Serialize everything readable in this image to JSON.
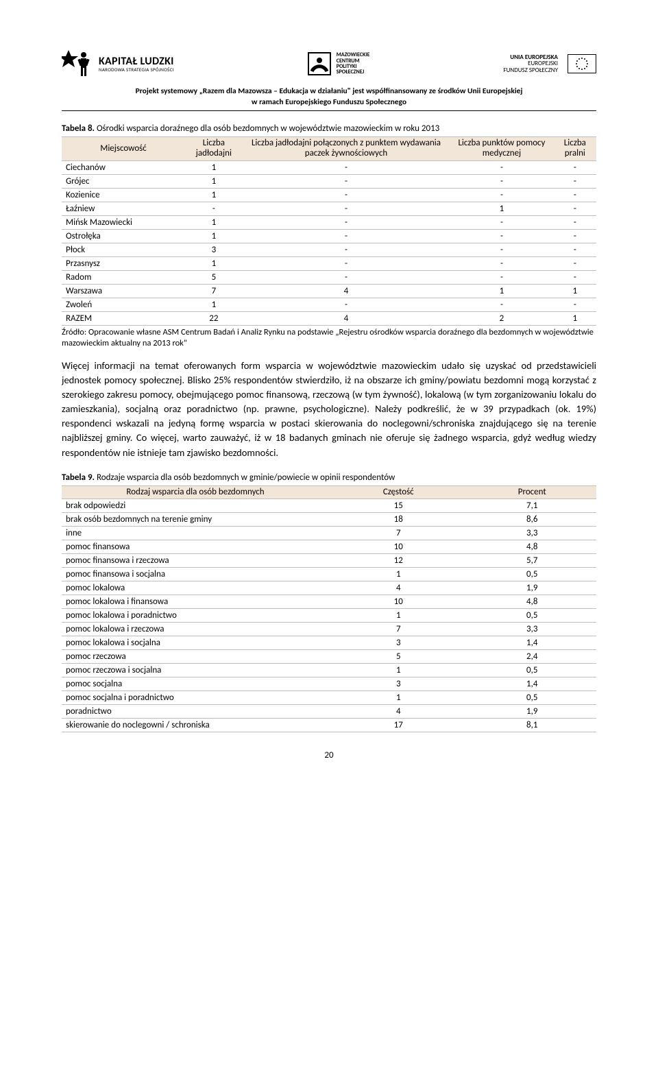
{
  "header": {
    "kl_big": "KAPITAŁ LUDZKI",
    "kl_small": "NARODOWA STRATEGIA SPÓJNOŚCI",
    "mc_l1": "MAZOWIECKIE",
    "mc_l2": "CENTRUM",
    "mc_l3": "POLITYKI",
    "mc_l4": "SPOŁECZNEJ",
    "ue_top": "UNIA EUROPEJSKA",
    "ue_bot": "EUROPEJSKI",
    "ue_bot2": "FUNDUSZ SPOŁECZNY",
    "project_line_a": "Projekt systemowy „Razem dla Mazowsza – Edukacja w działaniu\" jest współfinansowany ze środków Unii Europejskiej",
    "project_line_b": "w ramach Europejskiego Funduszu Społecznego"
  },
  "table8": {
    "caption_bold": "Tabela 8.",
    "caption_rest": " Ośrodki wsparcia doraźnego dla osób bezdomnych w województwie mazowieckim w roku 2013",
    "columns": [
      "Miejscowość",
      "Liczba jadłodajni",
      "Liczba jadłodajni połączonych z punktem wydawania paczek żywnościowych",
      "Liczba punktów pomocy medycznej",
      "Liczba pralni"
    ],
    "rows": [
      [
        "Ciechanów",
        "1",
        "-",
        "-",
        "-"
      ],
      [
        "Grójec",
        "1",
        "-",
        "-",
        "-"
      ],
      [
        "Kozienice",
        "1",
        "-",
        "-",
        "-"
      ],
      [
        "Łaźniew",
        "-",
        "-",
        "1",
        "-"
      ],
      [
        "Mińsk Mazowiecki",
        "1",
        "-",
        "-",
        "-"
      ],
      [
        "Ostrołęka",
        "1",
        "-",
        "-",
        "-"
      ],
      [
        "Płock",
        "3",
        "-",
        "-",
        "-"
      ],
      [
        "Przasnysz",
        "1",
        "-",
        "-",
        "-"
      ],
      [
        "Radom",
        "5",
        "-",
        "-",
        "-"
      ],
      [
        "Warszawa",
        "7",
        "4",
        "1",
        "1"
      ],
      [
        "Zwoleń",
        "1",
        "-",
        "-",
        "-"
      ],
      [
        "RAZEM",
        "22",
        "4",
        "2",
        "1"
      ]
    ],
    "source": "Źródło: Opracowanie własne ASM Centrum Badań i Analiz Rynku na podstawie „Rejestru ośrodków wsparcia doraźnego dla bezdomnych w województwie mazowieckim aktualny na 2013 rok\""
  },
  "paragraph": "Więcej informacji na temat oferowanych form wsparcia w województwie mazowieckim udało się uzyskać od przedstawicieli jednostek pomocy społecznej. Blisko 25% respondentów stwierdziło, iż na obszarze ich gminy/powiatu bezdomni mogą korzystać z szerokiego zakresu pomocy, obejmującego pomoc finansową, rzeczową (w tym żywność), lokalową (w tym zorganizowaniu lokalu do zamieszkania), socjalną oraz poradnictwo (np. prawne, psychologiczne). Należy podkreślić, że w 39 przypadkach (ok. 19%) respondenci wskazali na jedyną formę wsparcia w postaci skierowania do noclegowni/schroniska znajdującego się na terenie najbliższej gminy. Co więcej, warto zauważyć, iż w 18 badanych gminach nie oferuje się żadnego wsparcia, gdyż według wiedzy respondentów nie istnieje tam zjawisko bezdomności.",
  "table9": {
    "caption_bold": "Tabela 9.",
    "caption_rest": " Rodzaje wsparcia dla osób bezdomnych w gminie/powiecie w opinii respondentów",
    "columns": [
      "Rodzaj wsparcia dla osób bezdomnych",
      "Częstość",
      "Procent"
    ],
    "rows": [
      [
        "brak odpowiedzi",
        "15",
        "7,1"
      ],
      [
        "brak osób bezdomnych na terenie gminy",
        "18",
        "8,6"
      ],
      [
        "inne",
        "7",
        "3,3"
      ],
      [
        "pomoc finansowa",
        "10",
        "4,8"
      ],
      [
        "pomoc finansowa i rzeczowa",
        "12",
        "5,7"
      ],
      [
        "pomoc finansowa i socjalna",
        "1",
        "0,5"
      ],
      [
        "pomoc lokalowa",
        "4",
        "1,9"
      ],
      [
        "pomoc lokalowa i finansowa",
        "10",
        "4,8"
      ],
      [
        "pomoc lokalowa i poradnictwo",
        "1",
        "0,5"
      ],
      [
        "pomoc lokalowa i rzeczowa",
        "7",
        "3,3"
      ],
      [
        "pomoc lokalowa i socjalna",
        "3",
        "1,4"
      ],
      [
        "pomoc rzeczowa",
        "5",
        "2,4"
      ],
      [
        "pomoc rzeczowa i socjalna",
        "1",
        "0,5"
      ],
      [
        "pomoc socjalna",
        "3",
        "1,4"
      ],
      [
        "pomoc socjalna i poradnictwo",
        "1",
        "0,5"
      ],
      [
        "poradnictwo",
        "4",
        "1,9"
      ],
      [
        "skierowanie do noclegowni / schroniska",
        "17",
        "8,1"
      ]
    ]
  },
  "page_number": "20",
  "colors": {
    "header_bg": "#f2e6d9",
    "border": "#bfbfbf",
    "text": "#000000"
  }
}
